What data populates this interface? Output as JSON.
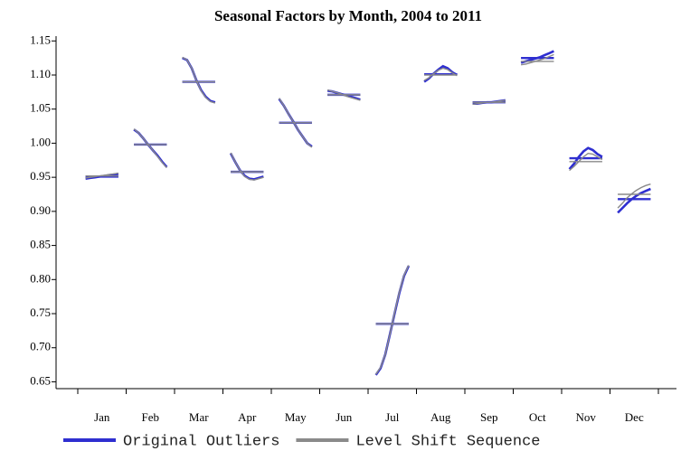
{
  "chart_data": {
    "type": "seasonal-subseries",
    "title": "Seasonal Factors by Month, 2004 to 2011",
    "categories": [
      "Jan",
      "Feb",
      "Mar",
      "Apr",
      "May",
      "Jun",
      "Jul",
      "Aug",
      "Sep",
      "Oct",
      "Nov",
      "Dec"
    ],
    "ylim": [
      0.64,
      1.157
    ],
    "yticks": [
      0.65,
      {
        "value": 0.7,
        "label": "0.70"
      },
      0.75,
      {
        "value": 0.8,
        "label": "0.80"
      },
      0.85,
      {
        "value": 0.9,
        "label": "0.90"
      },
      0.95,
      {
        "value": 1.0,
        "label": "1.00"
      },
      1.05,
      {
        "value": 1.1,
        "label": "1.10"
      },
      1.15
    ],
    "series": [
      {
        "name": "Original Outliers",
        "color": "#2f2fd0",
        "means": [
          0.951,
          0.998,
          1.09,
          0.958,
          1.03,
          1.071,
          0.735,
          1.101,
          1.06,
          1.125,
          0.978,
          0.918
        ],
        "values": [
          [
            0.948,
            0.949,
            0.95,
            0.951,
            0.952,
            0.953,
            0.954,
            0.955
          ],
          [
            1.02,
            1.015,
            1.007,
            0.998,
            0.99,
            0.982,
            0.973,
            0.965
          ],
          [
            1.125,
            1.122,
            1.11,
            1.092,
            1.078,
            1.068,
            1.062,
            1.06
          ],
          [
            0.985,
            0.972,
            0.96,
            0.952,
            0.948,
            0.947,
            0.949,
            0.951
          ],
          [
            1.065,
            1.055,
            1.043,
            1.032,
            1.02,
            1.01,
            1.0,
            0.995
          ],
          [
            1.077,
            1.076,
            1.074,
            1.072,
            1.07,
            1.068,
            1.066,
            1.064
          ],
          [
            0.66,
            0.67,
            0.69,
            0.72,
            0.75,
            0.78,
            0.805,
            0.82
          ],
          [
            1.09,
            1.095,
            1.102,
            1.108,
            1.113,
            1.11,
            1.104,
            1.1
          ],
          [
            1.058,
            1.058,
            1.059,
            1.06,
            1.06,
            1.061,
            1.062,
            1.063
          ],
          [
            1.118,
            1.12,
            1.122,
            1.124,
            1.126,
            1.129,
            1.132,
            1.135
          ],
          [
            0.962,
            0.97,
            0.98,
            0.988,
            0.993,
            0.99,
            0.984,
            0.98
          ],
          [
            0.898,
            0.905,
            0.912,
            0.918,
            0.923,
            0.927,
            0.93,
            0.933
          ]
        ]
      },
      {
        "name": "Level Shift Sequence",
        "color": "#8a8a8a",
        "means": [
          0.952,
          0.998,
          1.09,
          0.958,
          1.03,
          1.071,
          0.735,
          1.1,
          1.06,
          1.12,
          0.973,
          0.925
        ],
        "values": [
          [
            0.949,
            0.95,
            0.951,
            0.952,
            0.953,
            0.954,
            0.955,
            0.956
          ],
          [
            1.021,
            1.015,
            1.007,
            0.998,
            0.99,
            0.981,
            0.972,
            0.964
          ],
          [
            1.126,
            1.122,
            1.11,
            1.092,
            1.077,
            1.067,
            1.061,
            1.059
          ],
          [
            0.986,
            0.972,
            0.96,
            0.951,
            0.947,
            0.946,
            0.948,
            0.95
          ],
          [
            1.066,
            1.055,
            1.043,
            1.032,
            1.02,
            1.01,
            1.0,
            0.994
          ],
          [
            1.078,
            1.076,
            1.074,
            1.072,
            1.069,
            1.067,
            1.065,
            1.063
          ],
          [
            0.661,
            0.671,
            0.69,
            0.72,
            0.751,
            0.781,
            0.806,
            0.821
          ],
          [
            1.092,
            1.096,
            1.102,
            1.107,
            1.11,
            1.108,
            1.103,
            1.099
          ],
          [
            1.057,
            1.058,
            1.059,
            1.06,
            1.06,
            1.061,
            1.062,
            1.063
          ],
          [
            1.115,
            1.116,
            1.118,
            1.12,
            1.122,
            1.124,
            1.127,
            1.13
          ],
          [
            0.96,
            0.966,
            0.973,
            0.98,
            0.985,
            0.984,
            0.98,
            0.976
          ],
          [
            0.905,
            0.912,
            0.92,
            0.926,
            0.931,
            0.935,
            0.938,
            0.94
          ]
        ]
      }
    ]
  }
}
